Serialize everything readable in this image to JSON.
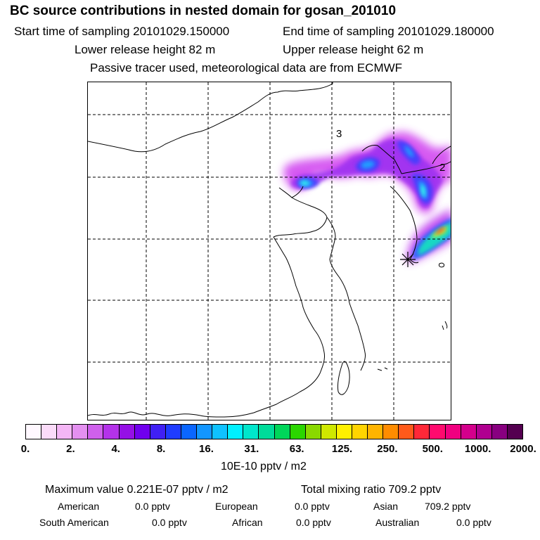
{
  "header": {
    "title": "BC  source contributions in nested domain for gosan_201010",
    "start_time": "Start time of sampling 20101029.150000",
    "end_time": "End time of sampling 20101029.180000",
    "lower_release": "Lower release height   82 m",
    "upper_release": "Upper release height   62 m",
    "tracer_note": "Passive tracer used, meteorological data are from ECMWF"
  },
  "map": {
    "labels": [
      "3",
      "2"
    ],
    "receptor_marker": "asterisk",
    "grid": "dashed"
  },
  "colorbar": {
    "colors": [
      "#fff8ff",
      "#fbdbf9",
      "#f4b6f5",
      "#e490f0",
      "#cf60ec",
      "#b432ea",
      "#9510e6",
      "#7000ee",
      "#4020f4",
      "#1f3cff",
      "#0a66ff",
      "#1296ff",
      "#0fc2ff",
      "#00f0ff",
      "#00e6cc",
      "#00dc9a",
      "#00d65a",
      "#2bd600",
      "#8ad800",
      "#cfe800",
      "#fff000",
      "#ffd400",
      "#ffb400",
      "#ff8c00",
      "#ff5a1a",
      "#ff2838",
      "#ff0a6e",
      "#f00080",
      "#d4008c",
      "#b00090",
      "#880080",
      "#540050"
    ],
    "tick_labels": [
      "0.",
      "2.",
      "4.",
      "8.",
      "16.",
      "31.",
      "63.",
      "125.",
      "250.",
      "500.",
      "1000.",
      "2000."
    ],
    "unit": "10E-10 pptv / m2"
  },
  "stats": {
    "max_value": "Maximum value  0.221E-07 pptv / m2",
    "total_mixing": "Total mixing ratio      709.2 pptv",
    "american_label": "American",
    "american_value": "0.0 pptv",
    "european_label": "European",
    "european_value": "0.0 pptv",
    "asian_label": "Asian",
    "asian_value": "709.2 pptv",
    "south_american_label": "South American",
    "south_american_value": "0.0 pptv",
    "african_label": "African",
    "african_value": "0.0 pptv",
    "australian_label": "Australian",
    "australian_value": "0.0 pptv"
  }
}
